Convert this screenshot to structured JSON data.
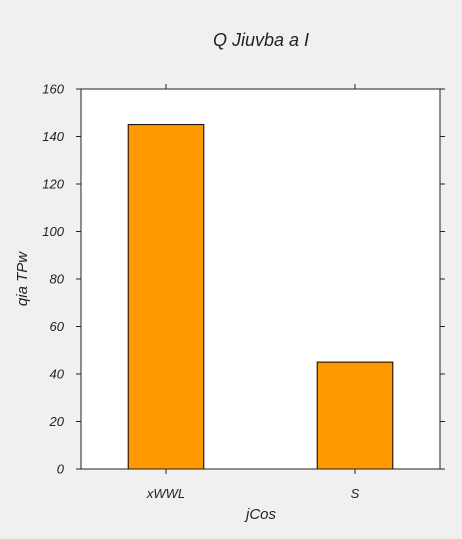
{
  "chart_data": {
    "type": "bar",
    "title": "Q  Jiuvba a I",
    "xlabel": "jCos",
    "ylabel": "qia TPw",
    "categories": [
      "xWWL",
      "S"
    ],
    "values": [
      145,
      45
    ],
    "ylim": [
      0,
      160
    ],
    "yticks": [
      0,
      20,
      40,
      60,
      80,
      100,
      120,
      140,
      160
    ],
    "grid": false,
    "legend": "none",
    "bar_color": "#ff9900",
    "bar_edge_color": "#000000",
    "background": "#ffffff",
    "figure_background": "#f0f0f0"
  }
}
